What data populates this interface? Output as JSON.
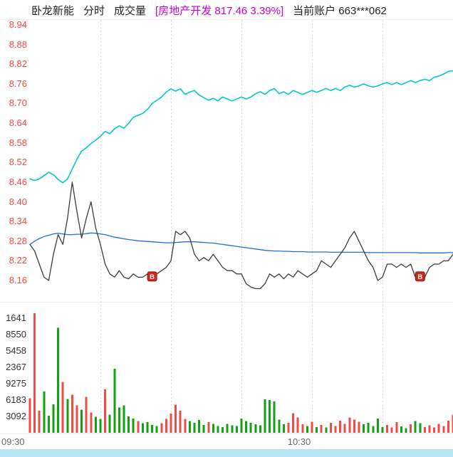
{
  "header": {
    "stock_name": "卧龙新能",
    "mode_label": "分时",
    "volume_label": "成交量",
    "sector_quote": "[房地产开发 817.46 3.39%]",
    "account_label": "当前账户 663***062"
  },
  "colors": {
    "header_text": "#222222",
    "sector_text": "#cc00cc",
    "price_axis": "#f74742",
    "volume_axis": "#333333",
    "time_text": "#666666",
    "grid": "#d8d8d8",
    "separator": "#ececec",
    "price_line": "#3b3b3b",
    "avg_line": "#1e6fd2",
    "index_line": "#00c8c8",
    "vol_up": "#f24b45",
    "vol_down": "#0fa30f",
    "marker_bg": "#cb2a1d",
    "marker_border": "#8e1b12",
    "marker_text": "#ffffff",
    "scrollbar": "#b5e3f3"
  },
  "chart_data": {
    "type": "line",
    "title": "卧龙新能 分时 成交量",
    "x_axis": {
      "unit": "minute",
      "total_minutes": 90,
      "ticks": [
        {
          "label": "09:30",
          "minute": 0
        },
        {
          "label": "10:30",
          "minute": 60
        }
      ],
      "gridline_minutes": [
        15,
        30,
        45,
        60,
        75
      ]
    },
    "price_pane": {
      "ylim": [
        8.1,
        8.96
      ],
      "yticks": [
        "8.94",
        "8.88",
        "8.82",
        "8.76",
        "8.70",
        "8.64",
        "8.58",
        "8.52",
        "8.46",
        "8.40",
        "8.34",
        "8.28",
        "8.22",
        "8.16"
      ],
      "series": [
        {
          "name": "price",
          "color_key": "price_line",
          "values": [
            8.27,
            8.25,
            8.21,
            8.17,
            8.16,
            8.24,
            8.3,
            8.27,
            8.35,
            8.46,
            8.37,
            8.29,
            8.35,
            8.4,
            8.32,
            8.27,
            8.21,
            8.18,
            8.17,
            8.19,
            8.17,
            8.165,
            8.18,
            8.17,
            8.17,
            8.18,
            8.17,
            8.18,
            8.19,
            8.2,
            8.22,
            8.31,
            8.3,
            8.31,
            8.29,
            8.24,
            8.22,
            8.23,
            8.22,
            8.24,
            8.22,
            8.2,
            8.19,
            8.19,
            8.18,
            8.18,
            8.15,
            8.14,
            8.135,
            8.135,
            8.15,
            8.18,
            8.17,
            8.18,
            8.165,
            8.18,
            8.17,
            8.19,
            8.18,
            8.17,
            8.18,
            8.19,
            8.22,
            8.21,
            8.2,
            8.22,
            8.24,
            8.26,
            8.29,
            8.31,
            8.28,
            8.25,
            8.22,
            8.2,
            8.16,
            8.17,
            8.21,
            8.21,
            8.2,
            8.21,
            8.2,
            8.21,
            8.17,
            8.16,
            8.17,
            8.2,
            8.21,
            8.21,
            8.22,
            8.22,
            8.24
          ]
        },
        {
          "name": "average_price",
          "color_key": "avg_line",
          "values": [
            8.27,
            8.28,
            8.288,
            8.294,
            8.298,
            8.302,
            8.304,
            8.302,
            8.3,
            8.3,
            8.301,
            8.301,
            8.303,
            8.305,
            8.304,
            8.302,
            8.3,
            8.296,
            8.292,
            8.29,
            8.287,
            8.285,
            8.283,
            8.281,
            8.28,
            8.279,
            8.278,
            8.277,
            8.276,
            8.275,
            8.275,
            8.276,
            8.277,
            8.278,
            8.278,
            8.278,
            8.277,
            8.276,
            8.275,
            8.274,
            8.272,
            8.27,
            8.268,
            8.266,
            8.264,
            8.262,
            8.26,
            8.258,
            8.256,
            8.254,
            8.252,
            8.251,
            8.25,
            8.25,
            8.249,
            8.249,
            8.248,
            8.248,
            8.248,
            8.247,
            8.247,
            8.247,
            8.247,
            8.247,
            8.246,
            8.246,
            8.246,
            8.246,
            8.246,
            8.246,
            8.246,
            8.246,
            8.245,
            8.245,
            8.245,
            8.245,
            8.245,
            8.245,
            8.245,
            8.245,
            8.245,
            8.245,
            8.245,
            8.244,
            8.244,
            8.244,
            8.244,
            8.244,
            8.244,
            8.245,
            8.245
          ]
        },
        {
          "name": "sector_index",
          "color_key": "index_line",
          "values": [
            8.47,
            8.465,
            8.47,
            8.48,
            8.49,
            8.483,
            8.468,
            8.458,
            8.47,
            8.5,
            8.53,
            8.555,
            8.565,
            8.578,
            8.588,
            8.6,
            8.615,
            8.608,
            8.623,
            8.632,
            8.625,
            8.64,
            8.658,
            8.664,
            8.67,
            8.682,
            8.7,
            8.71,
            8.72,
            8.735,
            8.745,
            8.738,
            8.745,
            8.728,
            8.735,
            8.74,
            8.726,
            8.718,
            8.71,
            8.716,
            8.708,
            8.72,
            8.714,
            8.708,
            8.714,
            8.72,
            8.714,
            8.72,
            8.73,
            8.736,
            8.728,
            8.74,
            8.746,
            8.73,
            8.736,
            8.728,
            8.74,
            8.734,
            8.728,
            8.734,
            8.74,
            8.734,
            8.74,
            8.746,
            8.74,
            8.746,
            8.74,
            8.75,
            8.756,
            8.75,
            8.754,
            8.76,
            8.754,
            8.75,
            8.754,
            8.76,
            8.764,
            8.758,
            8.764,
            8.758,
            8.764,
            8.77,
            8.764,
            8.77,
            8.774,
            8.77,
            8.78,
            8.784,
            8.79,
            8.798,
            8.8
          ]
        }
      ],
      "buy_markers": [
        {
          "label": "B",
          "minute": 26,
          "price": 8.17
        },
        {
          "label": "B",
          "minute": 83,
          "price": 8.17
        }
      ]
    },
    "volume_pane": {
      "ylim": [
        0,
        23200
      ],
      "yticks": [
        {
          "label": "1641",
          "value": 21644
        },
        {
          "label": "8550",
          "value": 18552
        },
        {
          "label": "5458",
          "value": 15460
        },
        {
          "label": "2367",
          "value": 12368
        },
        {
          "label": "9275",
          "value": 9276
        },
        {
          "label": "6183",
          "value": 6184
        },
        {
          "label": "3092",
          "value": 3092
        }
      ],
      "bars": [
        [
          6500,
          "u"
        ],
        [
          22600,
          "u"
        ],
        [
          4200,
          "u"
        ],
        [
          7800,
          "d"
        ],
        [
          3200,
          "d"
        ],
        [
          5400,
          "d"
        ],
        [
          19800,
          "d"
        ],
        [
          9600,
          "u"
        ],
        [
          6400,
          "d"
        ],
        [
          7200,
          "u"
        ],
        [
          5200,
          "u"
        ],
        [
          4400,
          "d"
        ],
        [
          6800,
          "u"
        ],
        [
          3800,
          "u"
        ],
        [
          3000,
          "d"
        ],
        [
          2600,
          "d"
        ],
        [
          8200,
          "u"
        ],
        [
          3400,
          "d"
        ],
        [
          12100,
          "d"
        ],
        [
          4800,
          "d"
        ],
        [
          5200,
          "d"
        ],
        [
          3100,
          "d"
        ],
        [
          2700,
          "d"
        ],
        [
          2200,
          "u"
        ],
        [
          1800,
          "d"
        ],
        [
          2000,
          "d"
        ],
        [
          1500,
          "d"
        ],
        [
          1300,
          "d"
        ],
        [
          1800,
          "u"
        ],
        [
          2600,
          "u"
        ],
        [
          3600,
          "u"
        ],
        [
          5300,
          "u"
        ],
        [
          4200,
          "u"
        ],
        [
          2600,
          "u"
        ],
        [
          2200,
          "d"
        ],
        [
          1900,
          "d"
        ],
        [
          2400,
          "d"
        ],
        [
          1500,
          "d"
        ],
        [
          2000,
          "u"
        ],
        [
          1700,
          "d"
        ],
        [
          1300,
          "d"
        ],
        [
          1100,
          "d"
        ],
        [
          1700,
          "d"
        ],
        [
          1400,
          "d"
        ],
        [
          1300,
          "d"
        ],
        [
          2700,
          "d"
        ],
        [
          2200,
          "d"
        ],
        [
          1900,
          "d"
        ],
        [
          1600,
          "d"
        ],
        [
          1400,
          "d"
        ],
        [
          6300,
          "d"
        ],
        [
          6200,
          "d"
        ],
        [
          5900,
          "d"
        ],
        [
          2500,
          "d"
        ],
        [
          1600,
          "d"
        ],
        [
          1900,
          "u"
        ],
        [
          3700,
          "u"
        ],
        [
          2900,
          "u"
        ],
        [
          1600,
          "u"
        ],
        [
          1300,
          "d"
        ],
        [
          2100,
          "u"
        ],
        [
          1100,
          "d"
        ],
        [
          1500,
          "u"
        ],
        [
          1000,
          "d"
        ],
        [
          1900,
          "u"
        ],
        [
          1300,
          "u"
        ],
        [
          2300,
          "u"
        ],
        [
          1700,
          "u"
        ],
        [
          2900,
          "u"
        ],
        [
          2500,
          "u"
        ],
        [
          2100,
          "u"
        ],
        [
          1600,
          "d"
        ],
        [
          1900,
          "d"
        ],
        [
          1300,
          "d"
        ],
        [
          2700,
          "d"
        ],
        [
          1100,
          "d"
        ],
        [
          1500,
          "u"
        ],
        [
          1000,
          "u"
        ],
        [
          2000,
          "u"
        ],
        [
          1200,
          "d"
        ],
        [
          900,
          "d"
        ],
        [
          1600,
          "u"
        ],
        [
          2200,
          "d"
        ],
        [
          1800,
          "d"
        ],
        [
          1100,
          "u"
        ],
        [
          1400,
          "u"
        ],
        [
          1000,
          "u"
        ],
        [
          1700,
          "u"
        ],
        [
          1300,
          "u"
        ],
        [
          2300,
          "u"
        ],
        [
          3400,
          "u"
        ]
      ]
    }
  }
}
